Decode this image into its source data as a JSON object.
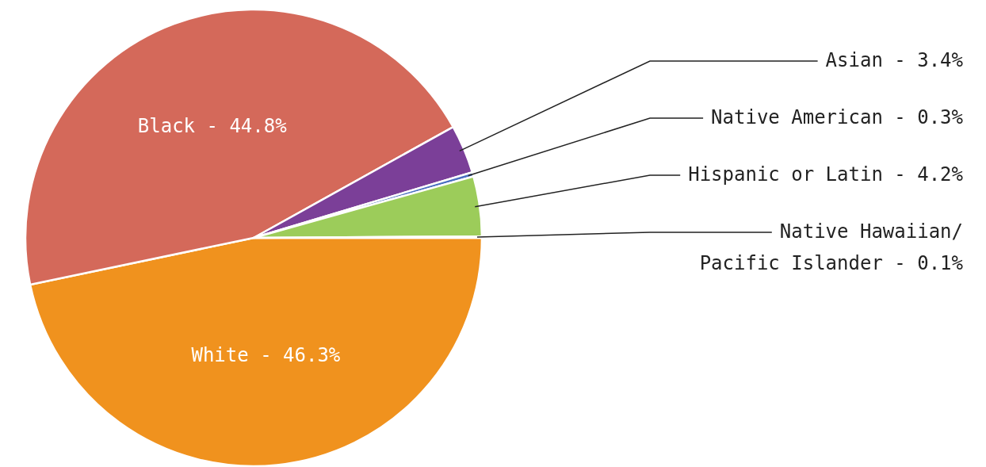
{
  "chart_data": {
    "type": "pie",
    "categories": [
      "White - 46.3%",
      "Black - 44.8%",
      "Asian - 3.4%",
      "Native American - 0.3%",
      "Hispanic or Latin - 4.2%",
      "Native Hawaiian/Pacific Islander - 0.1%"
    ],
    "values": [
      46.3,
      44.8,
      3.4,
      0.3,
      4.2,
      0.1
    ],
    "colors": [
      "#f0921e",
      "#d4695a",
      "#7b3f98",
      "#4a6fc0",
      "#9ccc5a",
      "#f5d63a"
    ]
  }
}
